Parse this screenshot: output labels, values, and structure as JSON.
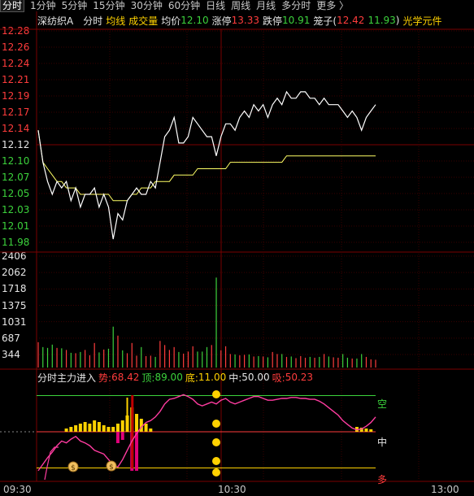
{
  "tabs": [
    {
      "label": "分时",
      "active": true
    },
    {
      "label": "1分钟"
    },
    {
      "label": "5分钟"
    },
    {
      "label": "15分钟"
    },
    {
      "label": "30分钟"
    },
    {
      "label": "60分钟"
    },
    {
      "label": "日线"
    },
    {
      "label": "周线"
    },
    {
      "label": "月线"
    },
    {
      "label": "多分时"
    },
    {
      "label": "更多 〉"
    }
  ],
  "info": {
    "stock_name": "深纺织A",
    "mode": "分时",
    "avg_line_label": "均线",
    "volume_label": "成交量",
    "avg_price_label": "均价",
    "avg_price": "12.10",
    "limit_up_label": "涨停",
    "limit_up": "13.33",
    "limit_down_label": "跌停",
    "limit_down": "10.91",
    "cage_label": "笼子(",
    "cage_high": "12.42",
    "cage_low": "11.93",
    "cage_close": ")",
    "concept": "光学元件"
  },
  "price_axis": [
    {
      "label": "12.28",
      "color": "#ff3c3c"
    },
    {
      "label": "12.26",
      "color": "#ff3c3c"
    },
    {
      "label": "12.24",
      "color": "#ff3c3c"
    },
    {
      "label": "12.21",
      "color": "#ff3c3c"
    },
    {
      "label": "12.19",
      "color": "#ff3c3c"
    },
    {
      "label": "12.17",
      "color": "#ff3c3c"
    },
    {
      "label": "12.14",
      "color": "#ff3c3c"
    },
    {
      "label": "12.12",
      "color": "#e6e6e6"
    },
    {
      "label": "12.10",
      "color": "#3cd23c"
    },
    {
      "label": "12.07",
      "color": "#3cd23c"
    },
    {
      "label": "12.05",
      "color": "#3cd23c"
    },
    {
      "label": "12.03",
      "color": "#3cd23c"
    },
    {
      "label": "12.01",
      "color": "#3cd23c"
    },
    {
      "label": "11.98",
      "color": "#3cd23c"
    }
  ],
  "volume_axis": [
    "2406",
    "2062",
    "1718",
    "1375",
    "1031",
    "687",
    "344"
  ],
  "indicator": {
    "title": "分时主力进入",
    "shi_label": "势:",
    "shi": "68.42",
    "ding_label": "顶:",
    "ding": "89.00",
    "di_label": "底:",
    "di": "11.00",
    "zhong_label": "中:",
    "zhong": "50.00",
    "xi_label": "吸:",
    "xi": "50.23",
    "kong": "空",
    "zhong_mark": "中",
    "duo": "多"
  },
  "time_axis": [
    "09:30",
    "10:30",
    "13:00"
  ],
  "colors": {
    "price_line": "#ffffff",
    "avg_line": "#ffff66",
    "up": "#ff3c3c",
    "down": "#3cd23c",
    "grid": "#3a0000",
    "indicator_line": "#ff3ca0"
  },
  "chart_data": {
    "type": "line",
    "series": [
      {
        "values": [
          12.14,
          12.09,
          12.06,
          12.04,
          12.06,
          12.05,
          12.06,
          12.03,
          12.05,
          12.02,
          12.04,
          12.04,
          12.05,
          12.02,
          12.04,
          12.02,
          11.97,
          12.01,
          12.0,
          12.03,
          12.04,
          12.05,
          12.04,
          12.04,
          12.06,
          12.05,
          12.09,
          12.13,
          12.14,
          12.16,
          12.12,
          12.12,
          12.13,
          12.16,
          12.15,
          12.14,
          12.13,
          12.13,
          12.1,
          12.13,
          12.15,
          12.15,
          12.14,
          12.16,
          12.17,
          12.16,
          12.18,
          12.17,
          12.18,
          12.16,
          12.18,
          12.19,
          12.18,
          12.2,
          12.19,
          12.19,
          12.2,
          12.2,
          12.19,
          12.19,
          12.18,
          12.19,
          12.18,
          12.18,
          12.18,
          12.17,
          12.16,
          12.17,
          12.16,
          12.14,
          12.16,
          12.17,
          12.18
        ]
      },
      {
        "values": [
          12.14,
          12.09,
          12.08,
          12.07,
          12.06,
          12.06,
          12.05,
          12.05,
          12.05,
          12.04,
          12.04,
          12.04,
          12.04,
          12.04,
          12.04,
          12.04,
          12.03,
          12.03,
          12.03,
          12.03,
          12.04,
          12.04,
          12.05,
          12.05,
          12.05,
          12.06,
          12.06,
          12.06,
          12.06,
          12.07,
          12.07,
          12.07,
          12.07,
          12.07,
          12.08,
          12.08,
          12.08,
          12.08,
          12.08,
          12.08,
          12.08,
          12.09,
          12.09,
          12.09,
          12.09,
          12.09,
          12.09,
          12.09,
          12.09,
          12.09,
          12.09,
          12.09,
          12.09,
          12.1,
          12.1,
          12.1,
          12.1,
          12.1,
          12.1,
          12.1,
          12.1,
          12.1,
          12.1,
          12.1,
          12.1,
          12.1,
          12.1,
          12.1,
          12.1,
          12.1,
          12.1,
          12.1,
          12.1
        ]
      }
    ],
    "ylim": [
      11.96,
      12.29
    ],
    "volume": {
      "values": [
        620,
        500,
        480,
        560,
        480,
        470,
        430,
        360,
        350,
        380,
        430,
        300,
        600,
        370,
        440,
        460,
        1000,
        780,
        420,
        350,
        600,
        290,
        500,
        280,
        290,
        260,
        650,
        550,
        430,
        500,
        380,
        340,
        390,
        520,
        390,
        390,
        500,
        550,
        2200,
        420,
        520,
        330,
        320,
        300,
        310,
        320,
        270,
        280,
        270,
        250,
        380,
        330,
        330,
        260,
        270,
        230,
        280,
        240,
        260,
        240,
        260,
        330,
        270,
        250,
        240,
        330,
        240,
        220,
        220,
        330,
        260,
        200,
        190
      ],
      "ylim": [
        0,
        2406
      ]
    },
    "indicator": {
      "values": [
        8,
        15,
        22,
        28,
        35,
        40,
        38,
        42,
        45,
        40,
        38,
        35,
        30,
        28,
        26,
        20,
        14,
        12,
        20,
        30,
        40,
        48,
        55,
        60,
        62,
        66,
        72,
        80,
        85,
        86,
        88,
        90,
        88,
        85,
        80,
        78,
        80,
        82,
        80,
        84,
        86,
        82,
        80,
        82,
        84,
        86,
        88,
        88,
        86,
        84,
        84,
        85,
        86,
        86,
        87,
        87,
        86,
        86,
        85,
        85,
        83,
        80,
        76,
        72,
        68,
        62,
        58,
        54,
        52,
        53,
        56,
        60,
        66
      ],
      "ding": 89,
      "di": 11,
      "zhong": 50,
      "ylim": [
        0,
        100
      ]
    }
  }
}
